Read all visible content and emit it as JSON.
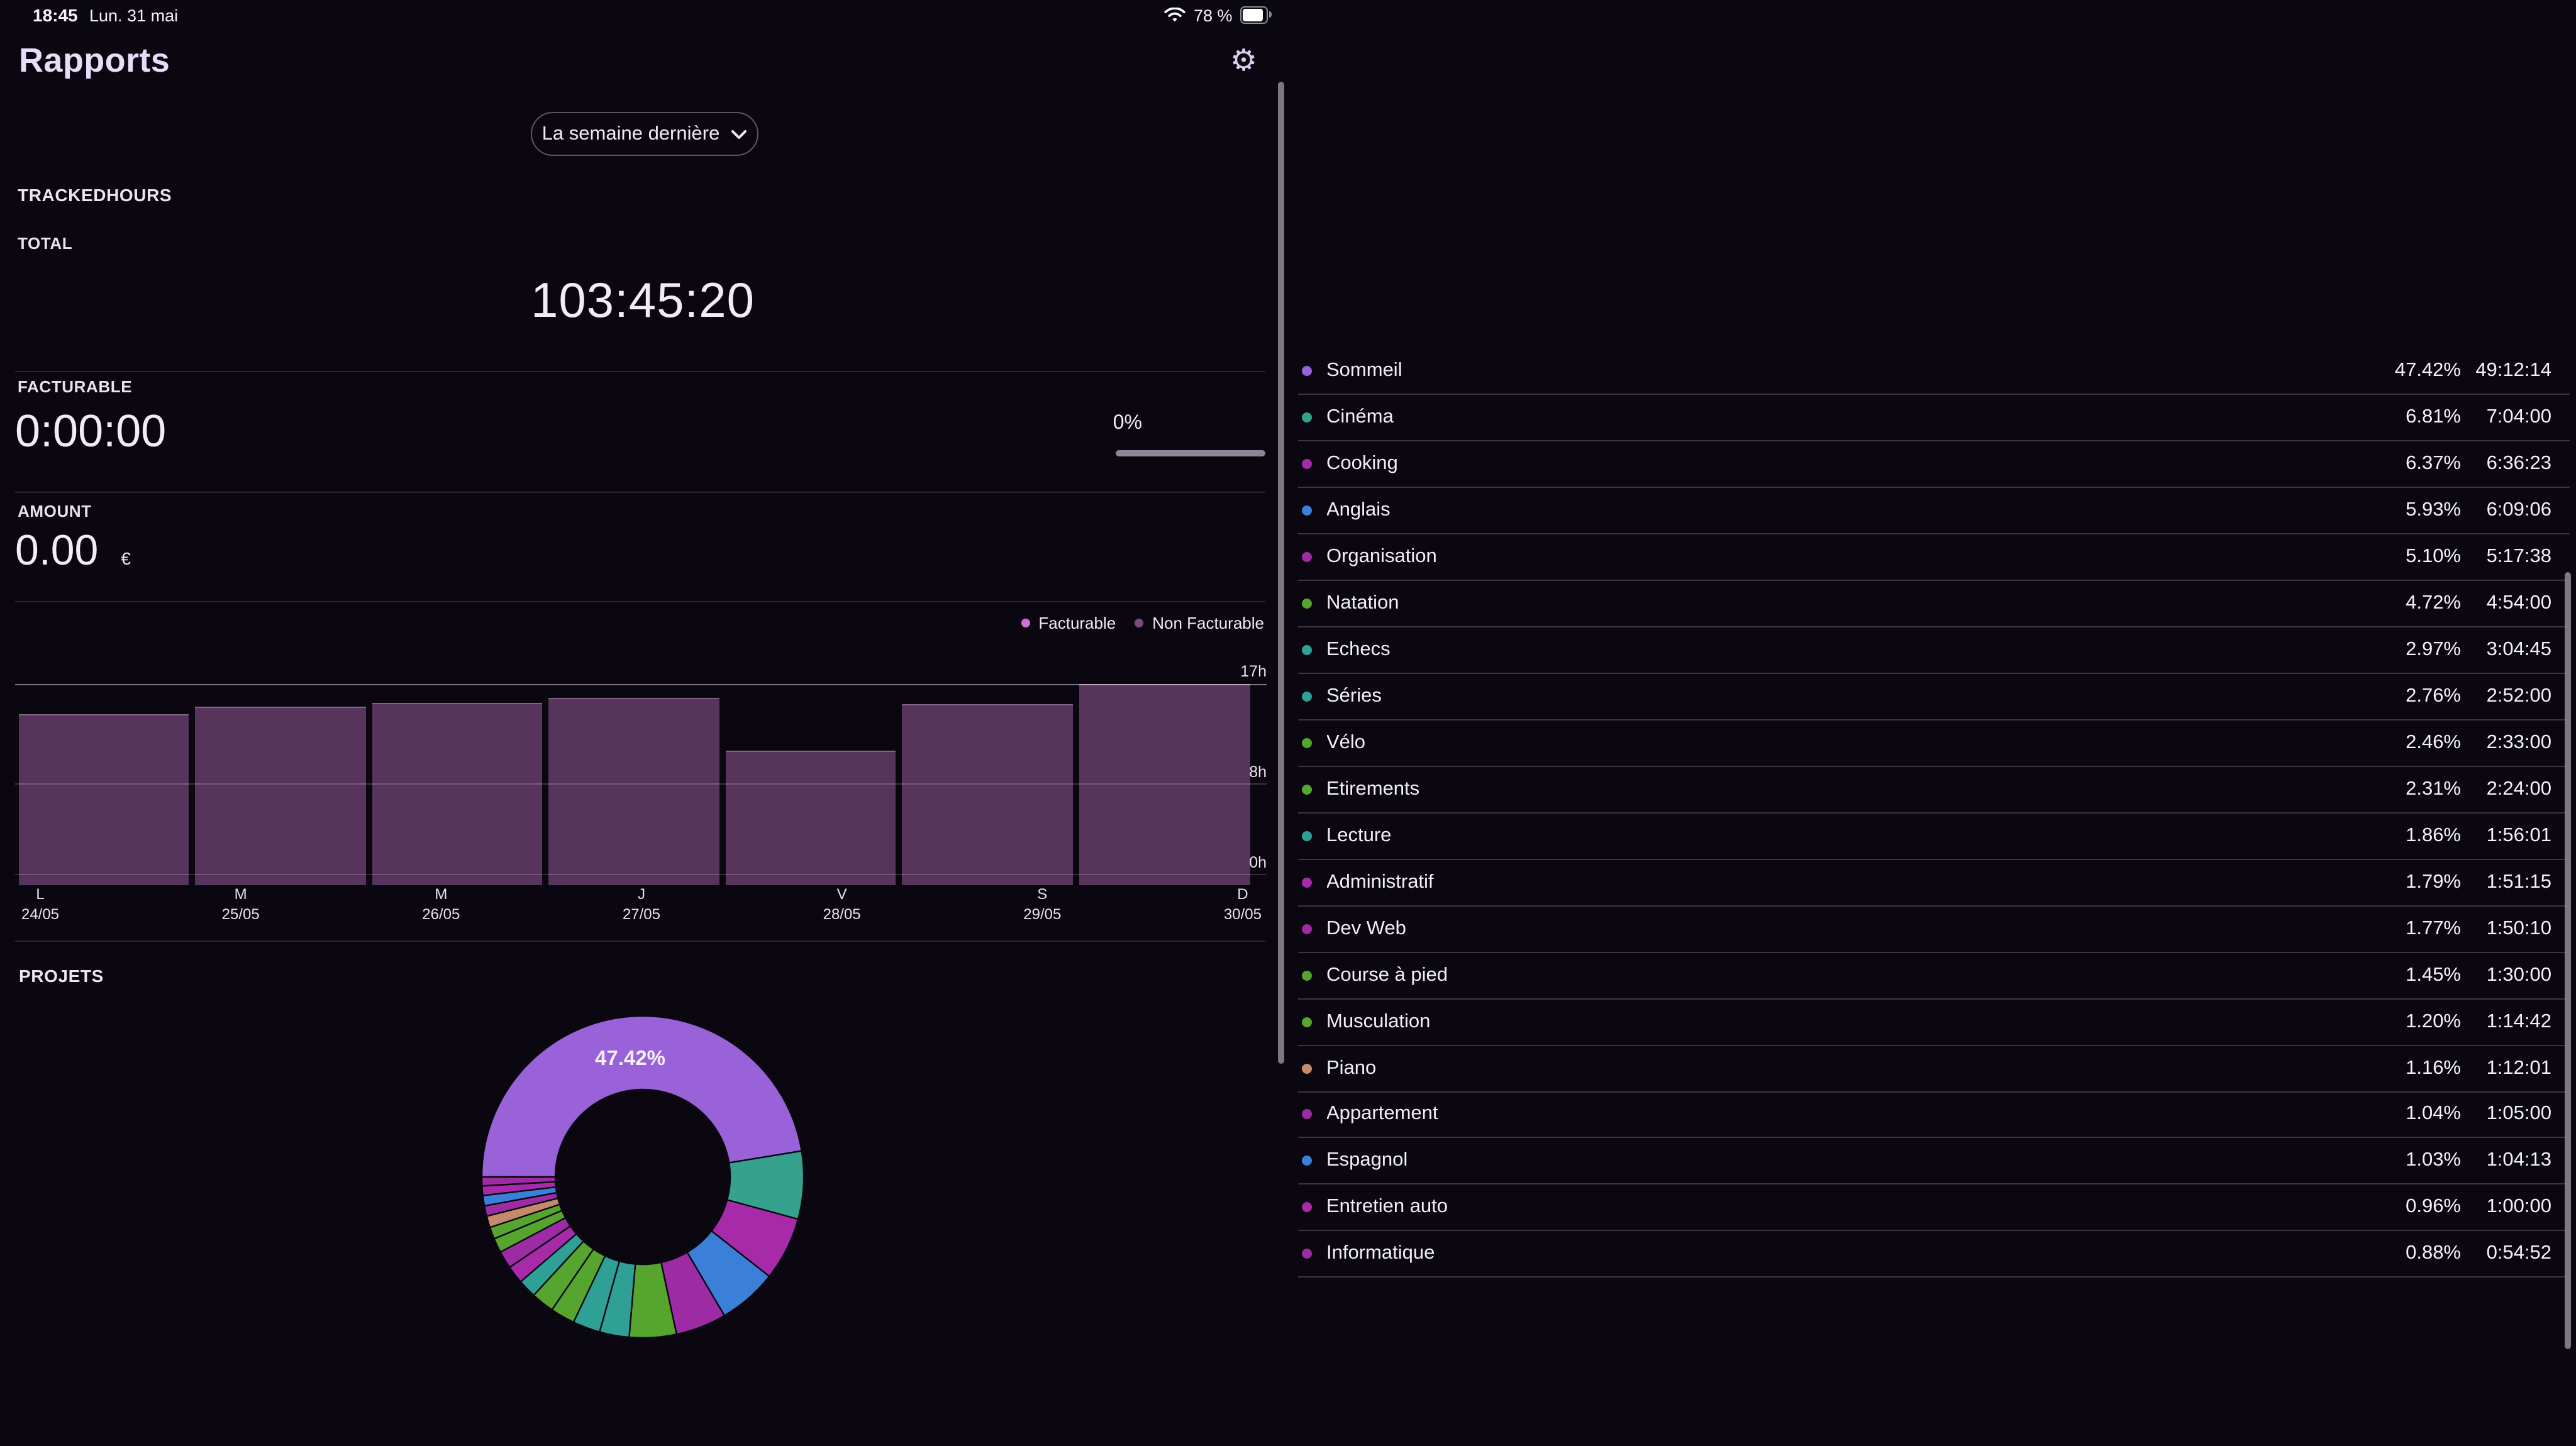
{
  "status_bar": {
    "time": "18:45",
    "date": "Lun. 31 mai",
    "battery_percent": "78 %"
  },
  "header": {
    "title": "Rapports"
  },
  "period_selector": {
    "selected": "La semaine dernière"
  },
  "tracked": {
    "section_label": "TRACKEDHOURS",
    "total_label": "TOTAL",
    "total_time": "103:45:20"
  },
  "billable": {
    "label": "FACTURABLE",
    "time": "0:00:00",
    "percent": "0%"
  },
  "amount": {
    "label": "AMOUNT",
    "value": "0.00",
    "currency": "€"
  },
  "projects_section": {
    "heading": "PROJETS",
    "donut_center_label": "47.42%"
  },
  "chart_data": [
    {
      "type": "bar",
      "title": "Tracked hours per day",
      "categories": [
        "L 24/05",
        "M 25/05",
        "M 26/05",
        "J 27/05",
        "V 28/05",
        "S 29/05",
        "D 30/05"
      ],
      "series": [
        {
          "name": "Non Facturable",
          "values": [
            14.3,
            15.0,
            15.3,
            15.7,
            11.0,
            15.2,
            17.0
          ]
        }
      ],
      "values_unit": "h",
      "ylim": [
        0,
        17
      ],
      "yticks": [
        "0h",
        "8h",
        "17h"
      ],
      "grid": "horizontal",
      "bar_color": "#57345b",
      "legend_position": "top-right",
      "legend": [
        {
          "label": "Facturable",
          "color": "#d46fd4"
        },
        {
          "label": "Non Facturable",
          "color": "#7a4d78"
        }
      ]
    },
    {
      "type": "pie",
      "donut": true,
      "start_angle_from_top_deg": 270,
      "direction": "clockwise",
      "center_label": "47.42%",
      "labels": [
        "Sommeil",
        "Cinéma",
        "Cooking",
        "Anglais",
        "Organisation",
        "Natation",
        "Echecs",
        "Séries",
        "Vélo",
        "Etirements",
        "Lecture",
        "Administratif",
        "Dev Web",
        "Course à pied",
        "Musculation",
        "Piano",
        "Appartement",
        "Espagnol",
        "Entretien auto",
        "Informatique"
      ],
      "values": [
        47.42,
        6.81,
        6.37,
        5.93,
        5.1,
        4.72,
        2.97,
        2.76,
        2.46,
        2.31,
        1.86,
        1.79,
        1.77,
        1.45,
        1.2,
        1.16,
        1.04,
        1.03,
        0.96,
        0.88
      ],
      "colors": [
        "#9a62d8",
        "#34a28c",
        "#a72ba9",
        "#3b80d8",
        "#9d2ba4",
        "#55a52e",
        "#2fa096",
        "#2fa096",
        "#55a52e",
        "#55a52e",
        "#2fa096",
        "#a72ba9",
        "#9d2ba4",
        "#55a52e",
        "#55a52e",
        "#c58a6a",
        "#9d2ba4",
        "#3b80d8",
        "#a72ba9",
        "#9d2ba4"
      ]
    }
  ],
  "projects": {
    "items": [
      {
        "name": "Sommeil",
        "percent": "47.42%",
        "time": "49:12:14",
        "color": "#9a62d8"
      },
      {
        "name": "Cinéma",
        "percent": "6.81%",
        "time": "7:04:00",
        "color": "#34a28c"
      },
      {
        "name": "Cooking",
        "percent": "6.37%",
        "time": "6:36:23",
        "color": "#a72ba9"
      },
      {
        "name": "Anglais",
        "percent": "5.93%",
        "time": "6:09:06",
        "color": "#3b80d8"
      },
      {
        "name": "Organisation",
        "percent": "5.10%",
        "time": "5:17:38",
        "color": "#9d2ba4"
      },
      {
        "name": "Natation",
        "percent": "4.72%",
        "time": "4:54:00",
        "color": "#55a52e"
      },
      {
        "name": "Echecs",
        "percent": "2.97%",
        "time": "3:04:45",
        "color": "#2fa096"
      },
      {
        "name": "Séries",
        "percent": "2.76%",
        "time": "2:52:00",
        "color": "#2fa096"
      },
      {
        "name": "Vélo",
        "percent": "2.46%",
        "time": "2:33:00",
        "color": "#55a52e"
      },
      {
        "name": "Etirements",
        "percent": "2.31%",
        "time": "2:24:00",
        "color": "#55a52e"
      },
      {
        "name": "Lecture",
        "percent": "1.86%",
        "time": "1:56:01",
        "color": "#2fa096"
      },
      {
        "name": "Administratif",
        "percent": "1.79%",
        "time": "1:51:15",
        "color": "#a72ba9"
      },
      {
        "name": "Dev Web",
        "percent": "1.77%",
        "time": "1:50:10",
        "color": "#9d2ba4"
      },
      {
        "name": "Course à pied",
        "percent": "1.45%",
        "time": "1:30:00",
        "color": "#55a52e"
      },
      {
        "name": "Musculation",
        "percent": "1.20%",
        "time": "1:14:42",
        "color": "#55a52e"
      },
      {
        "name": "Piano",
        "percent": "1.16%",
        "time": "1:12:01",
        "color": "#c58a6a"
      },
      {
        "name": "Appartement",
        "percent": "1.04%",
        "time": "1:05:00",
        "color": "#9d2ba4"
      },
      {
        "name": "Espagnol",
        "percent": "1.03%",
        "time": "1:04:13",
        "color": "#3b80d8"
      },
      {
        "name": "Entretien auto",
        "percent": "0.96%",
        "time": "1:00:00",
        "color": "#a72ba9"
      },
      {
        "name": "Informatique",
        "percent": "0.88%",
        "time": "0:54:52",
        "color": "#9d2ba4"
      }
    ]
  }
}
